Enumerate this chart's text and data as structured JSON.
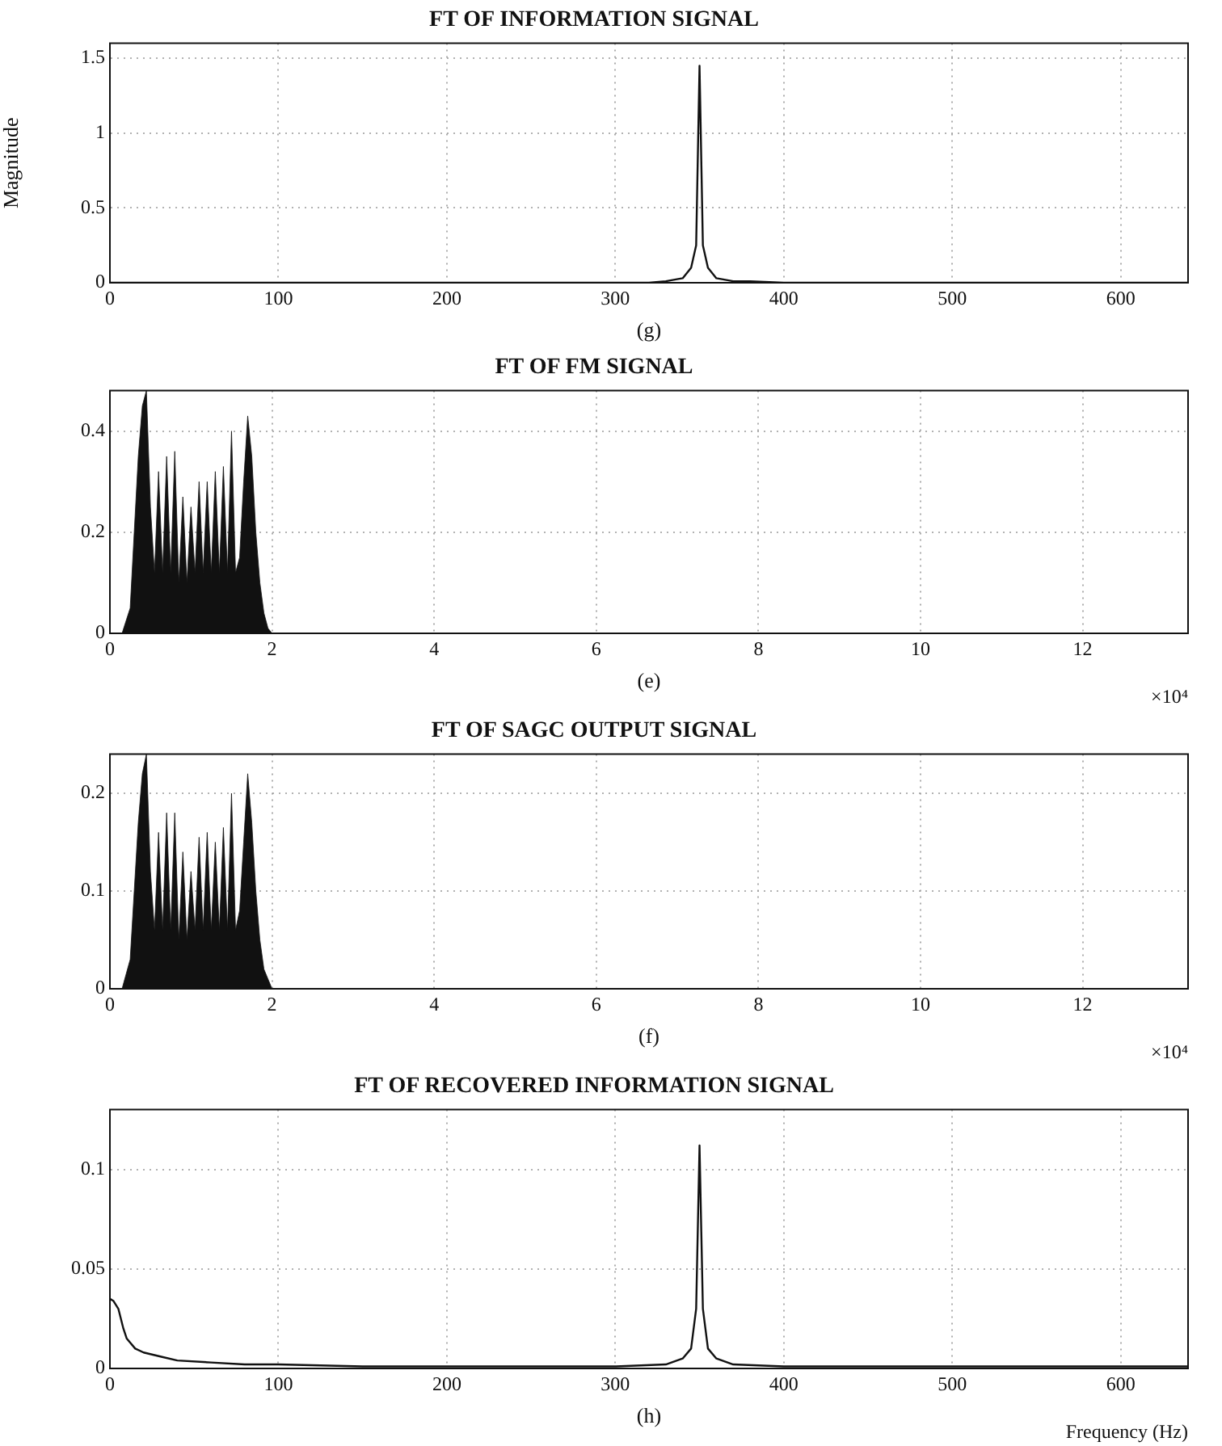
{
  "chart_data": [
    {
      "type": "line",
      "title": "FT OF INFORMATION SIGNAL",
      "xlabel": "(g)",
      "ylabel": "Magnitude",
      "xlim": [
        0,
        640
      ],
      "xticks": [
        0,
        100,
        200,
        300,
        400,
        500,
        600
      ],
      "ylim": [
        0,
        1.6
      ],
      "yticks": [
        0,
        0.5,
        1,
        1.5
      ],
      "grid": true,
      "series": [
        {
          "color": "#111111",
          "x": [
            0,
            300,
            320,
            330,
            340,
            345,
            348,
            350,
            352,
            355,
            360,
            370,
            380,
            400,
            640
          ],
          "values": [
            0,
            0,
            0,
            0.01,
            0.03,
            0.1,
            0.25,
            1.45,
            0.25,
            0.1,
            0.03,
            0.01,
            0.01,
            0,
            0
          ]
        }
      ]
    },
    {
      "type": "area",
      "title": "FT OF FM SIGNAL",
      "xlabel": "(e)",
      "xlim": [
        0,
        13.3
      ],
      "xticks": [
        0,
        2,
        4,
        6,
        8,
        10,
        12
      ],
      "ylim": [
        0,
        0.48
      ],
      "yticks": [
        0,
        0.2,
        0.4
      ],
      "grid": true,
      "annotations": [
        "×10⁴"
      ],
      "series": [
        {
          "color": "#111111",
          "x": [
            0,
            0.15,
            0.25,
            0.3,
            0.35,
            0.4,
            0.45,
            0.5,
            0.55,
            0.6,
            0.65,
            0.7,
            0.75,
            0.8,
            0.85,
            0.9,
            0.95,
            1.0,
            1.05,
            1.1,
            1.15,
            1.2,
            1.25,
            1.3,
            1.35,
            1.4,
            1.45,
            1.5,
            1.55,
            1.6,
            1.65,
            1.7,
            1.75,
            1.8,
            1.85,
            1.9,
            1.95,
            2.0,
            13.3
          ],
          "values": [
            0,
            0,
            0.05,
            0.2,
            0.35,
            0.45,
            0.48,
            0.25,
            0.12,
            0.32,
            0.12,
            0.35,
            0.12,
            0.36,
            0.1,
            0.27,
            0.1,
            0.25,
            0.12,
            0.3,
            0.12,
            0.3,
            0.12,
            0.32,
            0.12,
            0.33,
            0.12,
            0.4,
            0.12,
            0.15,
            0.3,
            0.43,
            0.35,
            0.2,
            0.1,
            0.04,
            0.01,
            0,
            0
          ]
        }
      ]
    },
    {
      "type": "area",
      "title": "FT OF SAGC OUTPUT SIGNAL",
      "xlabel": "(f)",
      "xlim": [
        0,
        13.3
      ],
      "xticks": [
        0,
        2,
        4,
        6,
        8,
        10,
        12
      ],
      "ylim": [
        0,
        0.24
      ],
      "yticks": [
        0,
        0.1,
        0.2
      ],
      "grid": true,
      "annotations": [
        "×10⁴"
      ],
      "series": [
        {
          "color": "#111111",
          "x": [
            0,
            0.15,
            0.25,
            0.3,
            0.35,
            0.4,
            0.45,
            0.5,
            0.55,
            0.6,
            0.65,
            0.7,
            0.75,
            0.8,
            0.85,
            0.9,
            0.95,
            1.0,
            1.05,
            1.1,
            1.15,
            1.2,
            1.25,
            1.3,
            1.35,
            1.4,
            1.45,
            1.5,
            1.55,
            1.6,
            1.65,
            1.7,
            1.75,
            1.8,
            1.85,
            1.9,
            1.95,
            2.0,
            13.3
          ],
          "values": [
            0,
            0,
            0.03,
            0.1,
            0.17,
            0.22,
            0.24,
            0.12,
            0.06,
            0.16,
            0.06,
            0.18,
            0.06,
            0.18,
            0.05,
            0.14,
            0.05,
            0.12,
            0.06,
            0.155,
            0.06,
            0.16,
            0.06,
            0.15,
            0.06,
            0.165,
            0.06,
            0.2,
            0.06,
            0.08,
            0.15,
            0.22,
            0.17,
            0.1,
            0.05,
            0.02,
            0.01,
            0,
            0
          ]
        }
      ]
    },
    {
      "type": "line",
      "title": "FT OF RECOVERED INFORMATION SIGNAL",
      "xlabel": "(h)",
      "xlim": [
        0,
        640
      ],
      "xticks": [
        0,
        100,
        200,
        300,
        400,
        500,
        600
      ],
      "ylim": [
        0,
        0.13
      ],
      "yticks": [
        0,
        0.05,
        0.1
      ],
      "grid": true,
      "annotations": [
        "Frequency (Hz)"
      ],
      "series": [
        {
          "color": "#111111",
          "x": [
            0,
            2,
            5,
            8,
            10,
            15,
            20,
            30,
            40,
            60,
            80,
            100,
            150,
            200,
            300,
            330,
            340,
            345,
            348,
            350,
            352,
            355,
            360,
            370,
            400,
            640
          ],
          "values": [
            0.035,
            0.034,
            0.03,
            0.02,
            0.015,
            0.01,
            0.008,
            0.006,
            0.004,
            0.003,
            0.002,
            0.002,
            0.001,
            0.001,
            0.001,
            0.002,
            0.005,
            0.01,
            0.03,
            0.112,
            0.03,
            0.01,
            0.005,
            0.002,
            0.001,
            0.001
          ]
        }
      ]
    }
  ]
}
